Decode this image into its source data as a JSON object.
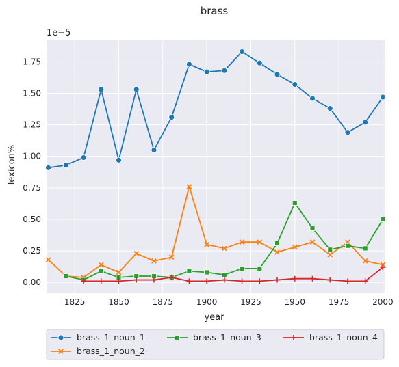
{
  "chart_data": {
    "type": "line",
    "title": "brass",
    "xlabel": "year",
    "ylabel": "lexicon%",
    "y_offset_label": "1e−5",
    "xlim": [
      1809,
      2001
    ],
    "ylim": [
      -0.08,
      1.92
    ],
    "x_ticks": [
      1825,
      1850,
      1875,
      1900,
      1925,
      1950,
      1975,
      2000
    ],
    "y_ticks": [
      0.0,
      0.25,
      0.5,
      0.75,
      1.0,
      1.25,
      1.5,
      1.75
    ],
    "y_tick_labels": [
      "0.00",
      "0.25",
      "0.50",
      "0.75",
      "1.00",
      "1.25",
      "1.50",
      "1.75"
    ],
    "grid": true,
    "legend_position": "bottom",
    "x": [
      1810,
      1820,
      1830,
      1840,
      1850,
      1860,
      1870,
      1880,
      1890,
      1900,
      1910,
      1920,
      1930,
      1940,
      1950,
      1960,
      1970,
      1980,
      1990,
      2000
    ],
    "series": [
      {
        "name": "brass_1_noun_1",
        "color": "#1f77b4",
        "marker": "circle",
        "values": [
          0.91,
          0.93,
          0.99,
          1.53,
          0.97,
          1.53,
          1.05,
          1.31,
          1.73,
          1.67,
          1.68,
          1.83,
          1.74,
          1.65,
          1.57,
          1.46,
          1.38,
          1.19,
          1.27,
          1.47
        ]
      },
      {
        "name": "brass_1_noun_2",
        "color": "#ff7f0e",
        "marker": "x",
        "values": [
          0.18,
          0.05,
          0.04,
          0.14,
          0.08,
          0.23,
          0.17,
          0.2,
          0.76,
          0.3,
          0.27,
          0.32,
          0.32,
          0.24,
          0.28,
          0.32,
          0.22,
          0.32,
          0.17,
          0.14
        ]
      },
      {
        "name": "brass_1_noun_3",
        "color": "#2ca02c",
        "marker": "square",
        "values": [
          null,
          0.05,
          0.02,
          0.09,
          0.04,
          0.05,
          0.05,
          0.04,
          0.09,
          0.08,
          0.06,
          0.11,
          0.11,
          0.31,
          0.63,
          0.43,
          0.26,
          0.29,
          0.27,
          0.5
        ]
      },
      {
        "name": "brass_1_noun_4",
        "color": "#d62728",
        "marker": "plus",
        "values": [
          null,
          null,
          0.01,
          0.01,
          0.01,
          0.02,
          0.02,
          0.04,
          0.01,
          0.01,
          0.02,
          0.01,
          0.01,
          0.02,
          0.03,
          0.03,
          0.02,
          0.01,
          0.01,
          0.12
        ]
      }
    ]
  }
}
